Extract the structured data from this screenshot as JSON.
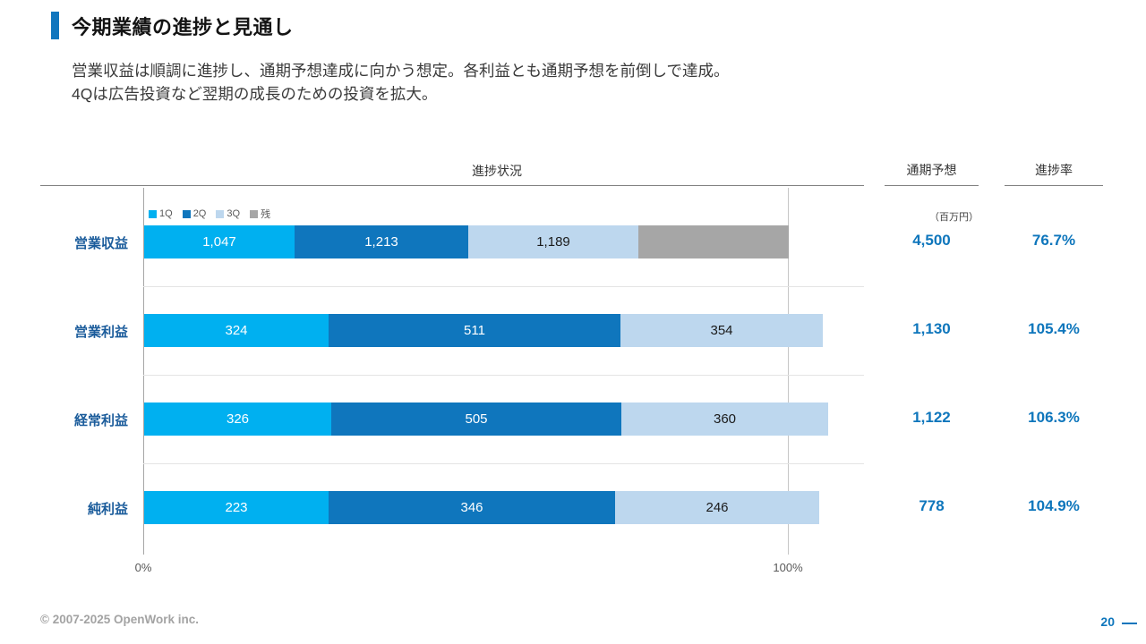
{
  "colors": {
    "accent_blue": "#1076be",
    "q1": "#00b0f0",
    "q2": "#0f76bd",
    "q3": "#bdd7ee",
    "remainder_gray": "#a6a6a6",
    "value_blue": "#0e76bc",
    "row_label_blue": "#1b5c9b"
  },
  "header": {
    "title": "今期業績の進捗と見通し",
    "subtitle_line1": "営業収益は順調に進捗し、通期予想達成に向かう想定。各利益とも通期予想を前倒しで達成。",
    "subtitle_line2": "4Qは広告投資など翌期の成長のための投資を拡大。"
  },
  "chart_data": {
    "type": "bar",
    "orientation": "horizontal_stacked",
    "title": "進捗状況",
    "unit_label": "（百万円）",
    "columns": {
      "forecast": "通期予想",
      "progress": "進捗率"
    },
    "legend": [
      "1Q",
      "2Q",
      "3Q",
      "残"
    ],
    "legend_colors": [
      "#00b0f0",
      "#0f76bd",
      "#bdd7ee",
      "#a6a6a6"
    ],
    "legend_position": "top-left",
    "x_axis": {
      "min_label": "0%",
      "max_label": "100%",
      "scale": "percent_of_forecast"
    },
    "x_ticks": [
      "0%",
      "100%"
    ],
    "rows": [
      {
        "label": "営業収益",
        "values": [
          1047,
          1213,
          1189
        ],
        "value_labels": [
          "1,047",
          "1,213",
          "1,189"
        ],
        "remainder": true,
        "forecast": 4500,
        "forecast_label": "4,500",
        "progress_label": "76.7%"
      },
      {
        "label": "営業利益",
        "values": [
          324,
          511,
          354
        ],
        "value_labels": [
          "324",
          "511",
          "354"
        ],
        "remainder": false,
        "forecast": 1130,
        "forecast_label": "1,130",
        "progress_label": "105.4%"
      },
      {
        "label": "経常利益",
        "values": [
          326,
          505,
          360
        ],
        "value_labels": [
          "326",
          "505",
          "360"
        ],
        "remainder": false,
        "forecast": 1122,
        "forecast_label": "1,122",
        "progress_label": "106.3%"
      },
      {
        "label": "純利益",
        "values": [
          223,
          346,
          246
        ],
        "value_labels": [
          "223",
          "346",
          "246"
        ],
        "remainder": false,
        "forecast": 778,
        "forecast_label": "778",
        "progress_label": "104.9%"
      }
    ]
  },
  "footer": {
    "copyright": "© 2007-2025 OpenWork inc.",
    "page_number": "20"
  }
}
